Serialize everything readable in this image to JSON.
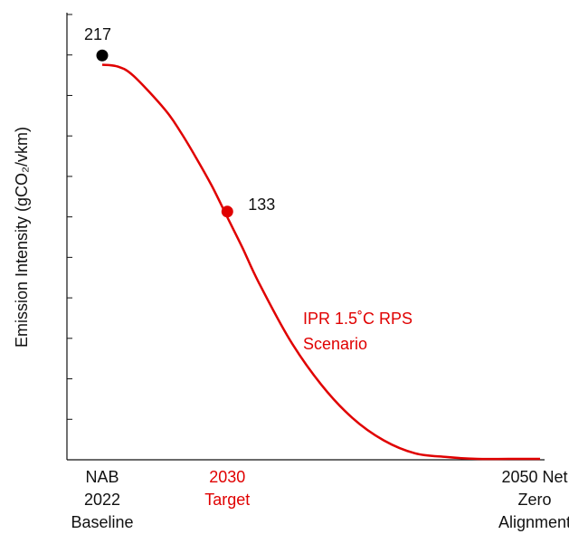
{
  "chart_data": {
    "type": "line",
    "ylabel": "Emission Intensity (gCO₂/vkm)",
    "xlabel": "",
    "x_categories": [
      {
        "lines": [
          "NAB",
          "2022",
          "Baseline"
        ],
        "color": "#111111"
      },
      {
        "lines": [
          "2030",
          "Target"
        ],
        "color": "#e00000"
      },
      {
        "lines": [
          "2050 Net",
          "Zero",
          "Alignment"
        ],
        "color": "#111111"
      }
    ],
    "x_range": [
      2022,
      2050
    ],
    "ylim": [
      0,
      240
    ],
    "y_tick_count": 11,
    "series": [
      {
        "name": "IPR 1.5˚C RPS Scenario",
        "label_lines": [
          "IPR 1.5˚C RPS",
          "Scenario"
        ],
        "color": "#e00000",
        "x": [
          2022,
          2023,
          2024,
          2026,
          2027,
          2028,
          2029,
          2030,
          2031,
          2032,
          2034,
          2036,
          2038,
          2040,
          2042,
          2044,
          2046,
          2048,
          2050
        ],
        "y": [
          212,
          211,
          206,
          188,
          176,
          162,
          147,
          130,
          113,
          95,
          64,
          40,
          22,
          10,
          3,
          1,
          0,
          0,
          0
        ]
      }
    ],
    "points": [
      {
        "x": 2022,
        "y": 217,
        "label": "217",
        "color": "#000000"
      },
      {
        "x": 2030,
        "y": 133,
        "label": "133",
        "color": "#e00000"
      }
    ]
  }
}
